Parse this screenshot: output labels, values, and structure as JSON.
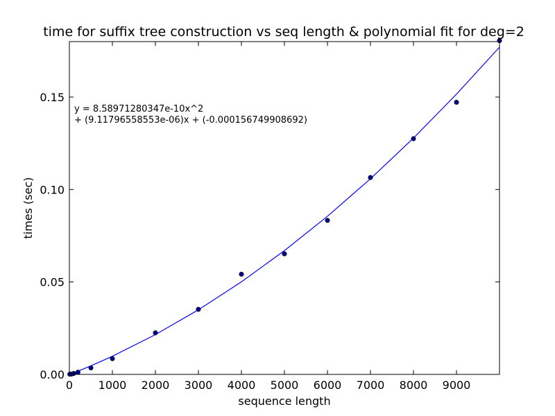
{
  "chart_data": {
    "type": "scatter",
    "title": "time for suffix tree construction vs seq length & polynomial fit for deg=2",
    "xlabel": "sequence length",
    "ylabel": "times (sec)",
    "xlim": [
      0,
      10000
    ],
    "ylim": [
      0,
      0.18
    ],
    "x_ticks": [
      0,
      1000,
      2000,
      3000,
      4000,
      5000,
      6000,
      7000,
      8000,
      9000
    ],
    "x_tick_labels": [
      "0",
      "1000",
      "2000",
      "3000",
      "4000",
      "5000",
      "6000",
      "7000",
      "8000",
      "9000"
    ],
    "y_ticks": [
      0,
      0.05,
      0.1,
      0.15
    ],
    "y_tick_labels": [
      "0.00",
      "0.05",
      "0.10",
      "0.15"
    ],
    "grid": false,
    "series": [
      {
        "kind": "scatter",
        "color": "#00008b",
        "x": [
          10,
          50,
          100,
          200,
          500,
          1000,
          2000,
          3000,
          4000,
          5000,
          6000,
          7000,
          8000,
          9000,
          10000
        ],
        "y": [
          0.0001,
          0.0002,
          0.0005,
          0.0012,
          0.0035,
          0.0085,
          0.0225,
          0.0352,
          0.0542,
          0.0652,
          0.0833,
          0.1065,
          0.1275,
          0.1472,
          0.1805
        ]
      },
      {
        "kind": "line",
        "color": "#0000ff",
        "x": [
          10,
          50,
          100,
          200,
          500,
          1000,
          2000,
          3000,
          4000,
          5000,
          6000,
          7000,
          8000,
          9000,
          10000
        ],
        "y": [
          -6.5e-05,
          0.000301,
          0.000763,
          0.001701,
          0.004617,
          0.00982,
          0.02152,
          0.034939,
          0.050077,
          0.066935,
          0.085512,
          0.105808,
          0.127823,
          0.151557,
          0.177011
        ]
      }
    ],
    "annotations": [
      "y = 8.58971280347e-10x^2",
      "+ (9.11796558553e-06)x + (-0.000156749908692)"
    ]
  }
}
